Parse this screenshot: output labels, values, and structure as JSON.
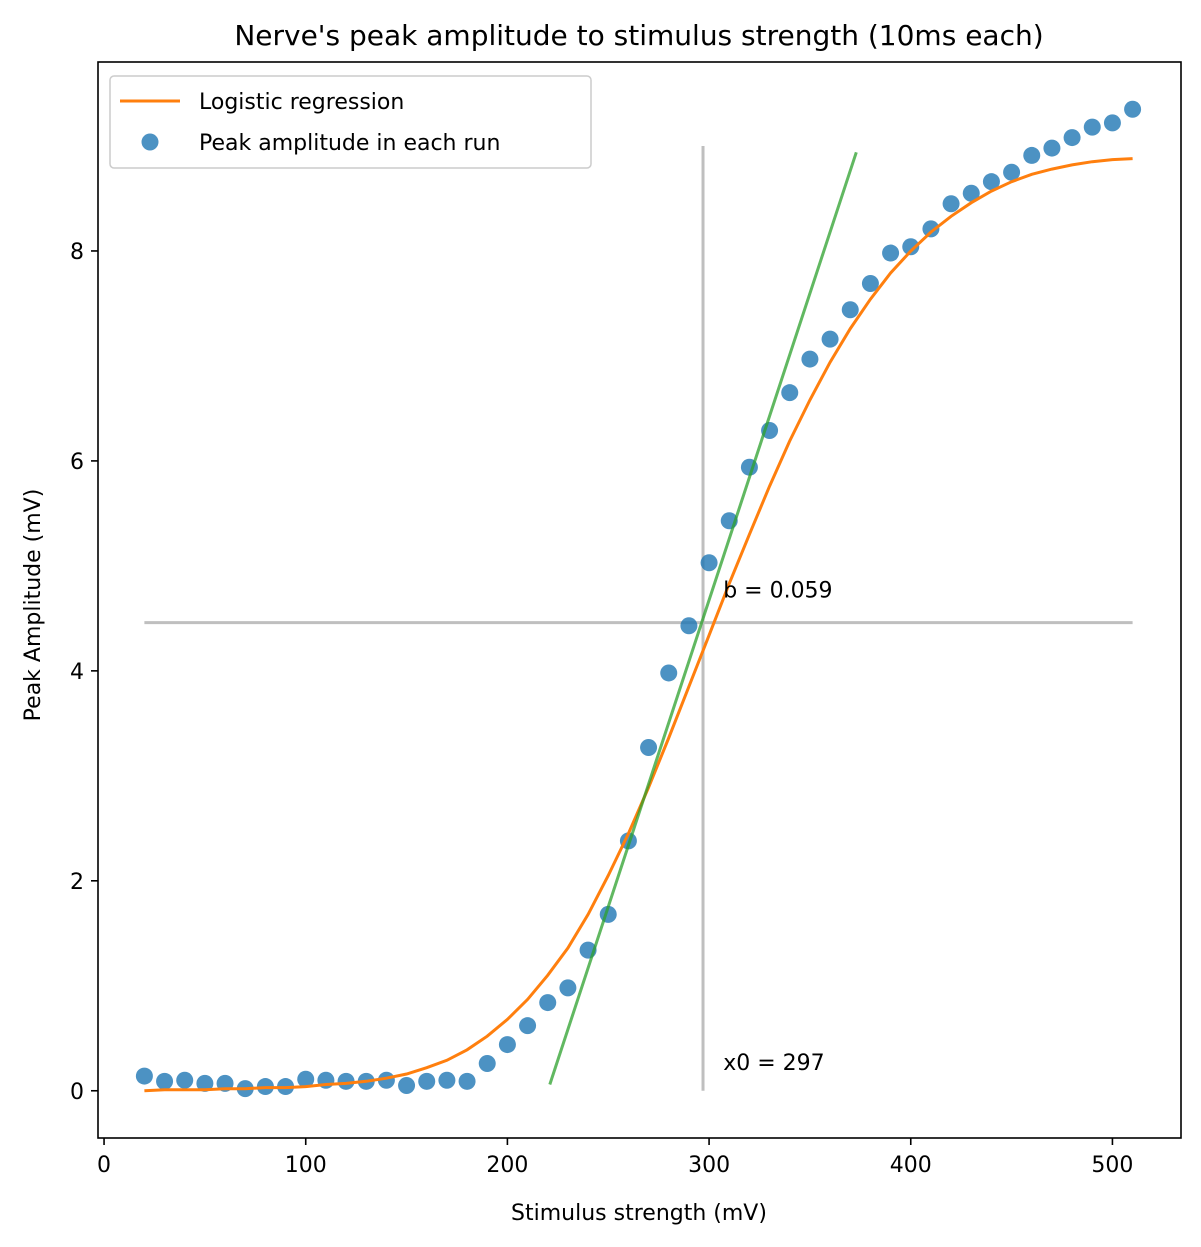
{
  "chart_data": {
    "type": "scatter",
    "title": "Nerve's peak amplitude to stimulus strength (10ms each)",
    "xlabel": "Stimulus strength (mV)",
    "ylabel": "Peak Amplitude (mV)",
    "xlim": [
      -3,
      534
    ],
    "ylim": [
      -0.45,
      9.8
    ],
    "xticks": [
      0,
      100,
      200,
      300,
      400,
      500
    ],
    "yticks": [
      0,
      2,
      4,
      6,
      8
    ],
    "grid": false,
    "legend_position": "top-left",
    "series": [
      {
        "name": "Peak amplitude in each run",
        "kind": "scatter",
        "color": "#1f77b4",
        "x": [
          20,
          30,
          40,
          50,
          60,
          70,
          80,
          90,
          100,
          110,
          120,
          130,
          140,
          150,
          160,
          170,
          180,
          190,
          200,
          210,
          220,
          230,
          240,
          250,
          260,
          270,
          280,
          290,
          300,
          310,
          320,
          330,
          340,
          350,
          360,
          370,
          380,
          390,
          400,
          410,
          420,
          430,
          440,
          450,
          460,
          470,
          480,
          490,
          500,
          510
        ],
        "y": [
          0.14,
          0.09,
          0.1,
          0.07,
          0.07,
          0.02,
          0.04,
          0.04,
          0.11,
          0.1,
          0.09,
          0.09,
          0.1,
          0.05,
          0.09,
          0.1,
          0.09,
          0.26,
          0.44,
          0.62,
          0.84,
          0.98,
          1.34,
          1.68,
          2.38,
          3.27,
          3.98,
          4.43,
          5.03,
          5.43,
          5.94,
          6.29,
          6.65,
          6.97,
          7.16,
          7.44,
          7.69,
          7.98,
          8.04,
          8.21,
          8.45,
          8.55,
          8.66,
          8.75,
          8.91,
          8.98,
          9.08,
          9.18,
          9.22,
          9.35
        ]
      },
      {
        "name": "Logistic regression",
        "kind": "line",
        "color": "#ff7f0e",
        "x": [
          20,
          30,
          40,
          50,
          60,
          70,
          80,
          90,
          100,
          110,
          120,
          130,
          140,
          150,
          160,
          170,
          180,
          190,
          200,
          210,
          220,
          230,
          240,
          250,
          260,
          270,
          280,
          290,
          300,
          310,
          320,
          330,
          340,
          350,
          360,
          370,
          380,
          390,
          400,
          410,
          420,
          430,
          440,
          450,
          460,
          470,
          480,
          490,
          500,
          510
        ],
        "y": [
          0.0,
          0.01,
          0.01,
          0.01,
          0.02,
          0.02,
          0.03,
          0.03,
          0.04,
          0.06,
          0.07,
          0.09,
          0.12,
          0.16,
          0.22,
          0.29,
          0.39,
          0.52,
          0.68,
          0.87,
          1.1,
          1.36,
          1.68,
          2.05,
          2.45,
          2.89,
          3.36,
          3.85,
          4.34,
          4.83,
          5.3,
          5.76,
          6.19,
          6.58,
          6.94,
          7.26,
          7.54,
          7.79,
          8.0,
          8.18,
          8.33,
          8.46,
          8.57,
          8.66,
          8.73,
          8.78,
          8.82,
          8.85,
          8.87,
          8.88
        ]
      },
      {
        "name": "",
        "kind": "line",
        "color": "#2ca02c",
        "x": [
          221,
          373
        ],
        "y": [
          0.06,
          8.94
        ]
      }
    ],
    "reference_lines": [
      {
        "orientation": "vertical",
        "x": 297,
        "y": [
          0,
          9.0
        ],
        "color": "#bfbfbf"
      },
      {
        "orientation": "horizontal",
        "y": 4.46,
        "x": [
          20,
          510
        ],
        "color": "#bfbfbf"
      }
    ],
    "annotations": [
      {
        "text": "b = 0.059",
        "x": 307,
        "y": 4.7
      },
      {
        "text": "x0 = 297",
        "x": 307,
        "y": 0.2
      }
    ]
  }
}
